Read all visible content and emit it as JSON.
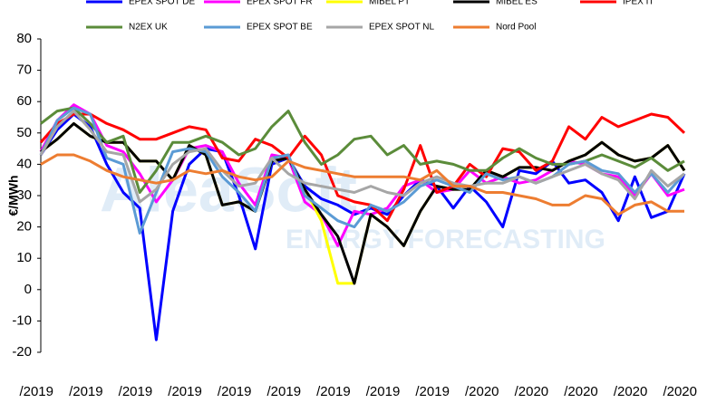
{
  "chart_data": {
    "type": "line",
    "y_label": "€/MWh",
    "watermark": [
      "AleaSoft",
      "ENERGY FORECASTING"
    ],
    "categories": [
      "/2019",
      null,
      null,
      "/2019",
      null,
      null,
      "/2019",
      null,
      null,
      "/2019",
      null,
      null,
      "/2019",
      null,
      null,
      "/2019",
      null,
      null,
      "/2019",
      null,
      null,
      "/2019",
      null,
      null,
      "/2019",
      null,
      null,
      "/2020",
      null,
      null,
      "/2020",
      null,
      null,
      "/2020",
      null,
      null,
      "/2020",
      null,
      null,
      "/2020"
    ],
    "ylim": [
      -20,
      80
    ],
    "yticks": [
      -20,
      -10,
      0,
      10,
      20,
      30,
      40,
      50,
      60,
      70,
      80
    ],
    "series": [
      {
        "name": "EPEX SPOT DE",
        "color": "#0000ff",
        "values": [
          43,
          51,
          56,
          52,
          40,
          31,
          26,
          -16,
          25,
          40,
          45,
          44,
          30,
          13,
          40,
          42,
          33,
          29,
          27,
          24,
          26,
          24,
          30,
          35,
          33,
          26,
          33,
          28,
          20,
          38,
          37,
          41,
          34,
          35,
          31,
          22,
          36,
          23,
          25,
          37
        ]
      },
      {
        "name": "EPEX SPOT FR",
        "color": "#ff00ff",
        "values": [
          44,
          54,
          59,
          56,
          46,
          44,
          37,
          28,
          35,
          45,
          46,
          44,
          34,
          27,
          43,
          42,
          28,
          24,
          14,
          25,
          24,
          26,
          33,
          35,
          31,
          32,
          38,
          34,
          36,
          34,
          35,
          38,
          41,
          40,
          37,
          36,
          30,
          37,
          30,
          32
        ]
      },
      {
        "name": "MIBEL PT",
        "color": "#ffff00",
        "values": [
          44,
          48,
          53,
          49,
          47,
          47,
          41,
          41,
          35,
          46,
          43,
          27,
          28,
          25,
          41,
          42,
          32,
          22,
          2,
          2,
          24,
          20,
          14,
          25,
          33,
          32,
          32,
          38,
          36,
          39,
          39,
          38,
          41,
          43,
          47,
          43,
          41,
          42,
          46,
          38
        ]
      },
      {
        "name": "MIBEL ES",
        "color": "#000000",
        "values": [
          44,
          48,
          53,
          49,
          47,
          47,
          41,
          41,
          35,
          46,
          43,
          27,
          28,
          25,
          41,
          42,
          32,
          24,
          17,
          2,
          24,
          20,
          14,
          25,
          33,
          32,
          32,
          38,
          36,
          39,
          39,
          38,
          41,
          43,
          47,
          43,
          41,
          42,
          46,
          38
        ]
      },
      {
        "name": "IPEX IT",
        "color": "#ff0000",
        "values": [
          47,
          53,
          56,
          56,
          53,
          51,
          48,
          48,
          50,
          52,
          51,
          42,
          41,
          48,
          46,
          42,
          49,
          43,
          30,
          28,
          27,
          22,
          32,
          46,
          31,
          33,
          40,
          36,
          45,
          44,
          38,
          41,
          52,
          48,
          55,
          52,
          54,
          56,
          55,
          50
        ]
      },
      {
        "name": "N2EX UK",
        "color": "#5b8c3a",
        "values": [
          53,
          57,
          58,
          53,
          47,
          49,
          31,
          38,
          47,
          47,
          49,
          47,
          43,
          45,
          52,
          57,
          47,
          40,
          43,
          48,
          49,
          43,
          46,
          40,
          41,
          40,
          38,
          38,
          42,
          45,
          42,
          40,
          40,
          41,
          43,
          41,
          39,
          42,
          38,
          41
        ]
      },
      {
        "name": "EPEX SPOT BE",
        "color": "#5b9bd5",
        "values": [
          43,
          54,
          58,
          56,
          42,
          40,
          18,
          31,
          44,
          45,
          44,
          36,
          31,
          25,
          42,
          43,
          30,
          26,
          22,
          20,
          27,
          25,
          28,
          33,
          35,
          33,
          31,
          37,
          35,
          36,
          34,
          36,
          40,
          41,
          38,
          37,
          31,
          37,
          31,
          37
        ]
      },
      {
        "name": "EPEX SPOT NL",
        "color": "#a6a6a6",
        "values": [
          43,
          52,
          57,
          51,
          44,
          43,
          28,
          32,
          40,
          44,
          45,
          38,
          33,
          34,
          42,
          37,
          34,
          33,
          32,
          31,
          33,
          31,
          30,
          34,
          36,
          34,
          33,
          34,
          34,
          36,
          34,
          36,
          38,
          40,
          37,
          35,
          29,
          38,
          33,
          37
        ]
      },
      {
        "name": "Nord Pool",
        "color": "#ed7d31",
        "values": [
          40,
          43,
          43,
          41,
          38,
          36,
          35,
          34,
          35,
          38,
          37,
          38,
          36,
          35,
          36,
          41,
          39,
          38,
          37,
          36,
          36,
          36,
          36,
          35,
          38,
          33,
          33,
          31,
          31,
          30,
          29,
          27,
          27,
          30,
          29,
          24,
          27,
          28,
          25,
          25
        ]
      }
    ]
  }
}
